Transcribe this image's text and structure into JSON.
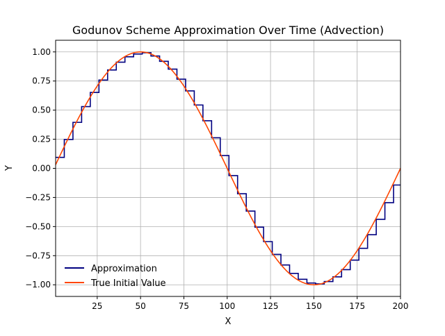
{
  "chart_data": {
    "type": "line",
    "title": "Godunov Scheme Approximation Over Time (Advection)",
    "xlabel": "X",
    "ylabel": "Y",
    "xlim": [
      1,
      200
    ],
    "ylim": [
      -1.1,
      1.1
    ],
    "grid": true,
    "legend_position": "lower-left",
    "x_ticks": [
      25,
      50,
      75,
      100,
      125,
      150,
      175,
      200
    ],
    "x_tick_labels": [
      "25",
      "50",
      "75",
      "100",
      "125",
      "150",
      "175",
      "200"
    ],
    "y_ticks": [
      1.0,
      0.75,
      0.5,
      0.25,
      0.0,
      -0.25,
      -0.5,
      -0.75,
      -1.0
    ],
    "y_tick_labels": [
      "1.00",
      "0.75",
      "0.50",
      "0.25",
      "0.00",
      "−0.25",
      "−0.50",
      "−0.75",
      "−1.00"
    ],
    "series": [
      {
        "name": "Approximation",
        "color": "#000080",
        "style": "step",
        "x": [
          1,
          6,
          11,
          16,
          21,
          26,
          31,
          36,
          41,
          46,
          51,
          56,
          61,
          66,
          71,
          76,
          81,
          86,
          91,
          96,
          101,
          106,
          111,
          116,
          121,
          126,
          131,
          136,
          141,
          146,
          151,
          156,
          161,
          166,
          171,
          176,
          181,
          186,
          191,
          196,
          200
        ],
        "values": [
          0.094,
          0.248,
          0.395,
          0.53,
          0.652,
          0.758,
          0.845,
          0.912,
          0.958,
          0.982,
          0.993,
          0.965,
          0.919,
          0.852,
          0.766,
          0.665,
          0.544,
          0.409,
          0.263,
          0.11,
          -0.062,
          -0.218,
          -0.367,
          -0.505,
          -0.629,
          -0.739,
          -0.83,
          -0.902,
          -0.953,
          -0.985,
          -0.992,
          -0.972,
          -0.932,
          -0.87,
          -0.788,
          -0.687,
          -0.57,
          -0.438,
          -0.295,
          -0.143,
          -0.143
        ]
      },
      {
        "name": "True Initial Value",
        "color": "#ff4500",
        "style": "line",
        "function": "sin",
        "period": 200,
        "amplitude": 1,
        "x_range": [
          1,
          200
        ]
      }
    ]
  }
}
